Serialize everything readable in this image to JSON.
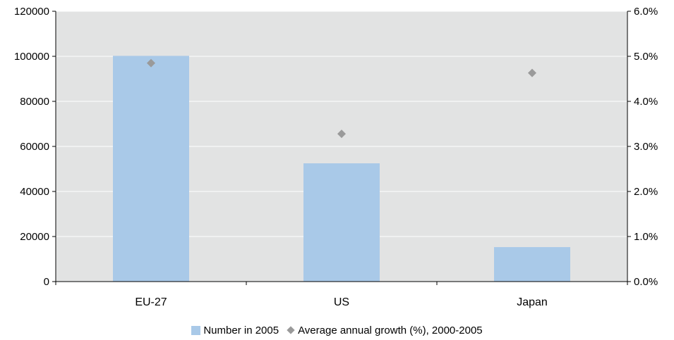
{
  "colors": {
    "plot_bg": "#e2e3e3",
    "bar": "#a9c9e8",
    "marker": "#9a9a9a",
    "grid": "#ffffff",
    "axis": "#000000"
  },
  "legend": {
    "bar_label": "Number in 2005",
    "marker_label": "Average annual growth (%), 2000-2005"
  },
  "chart_data": {
    "type": "bar",
    "categories": [
      "EU-27",
      "US",
      "Japan"
    ],
    "series": [
      {
        "name": "Number in 2005",
        "type": "bar",
        "axis": "left",
        "values": [
          100200,
          52500,
          15300
        ]
      },
      {
        "name": "Average annual growth (%), 2000-2005",
        "type": "scatter",
        "axis": "right",
        "values": [
          4.85,
          3.28,
          4.63
        ]
      }
    ],
    "y_left": {
      "min": 0,
      "max": 120000,
      "ticks": [
        0,
        20000,
        40000,
        60000,
        80000,
        100000,
        120000
      ],
      "tick_labels": [
        "0",
        "20000",
        "40000",
        "60000",
        "80000",
        "100000",
        "120000"
      ]
    },
    "y_right": {
      "min": 0,
      "max": 6,
      "ticks": [
        0,
        1,
        2,
        3,
        4,
        5,
        6
      ],
      "tick_labels": [
        "0.0%",
        "1.0%",
        "2.0%",
        "3.0%",
        "4.0%",
        "5.0%",
        "6.0%"
      ]
    },
    "grid": true,
    "legend_position": "bottom",
    "title": "",
    "xlabel": "",
    "ylabel": ""
  }
}
